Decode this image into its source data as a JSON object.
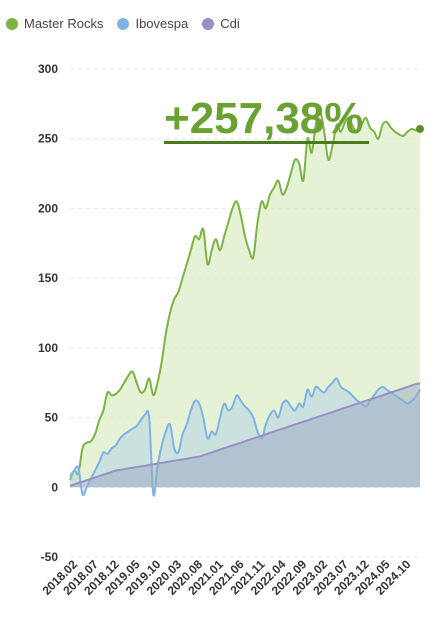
{
  "legend": [
    {
      "label": "Master Rocks",
      "color": "#7cb342"
    },
    {
      "label": "Ibovespa",
      "color": "#7fb3e6"
    },
    {
      "label": "Cdi",
      "color": "#9a8fc9"
    }
  ],
  "headline": "+257,38%",
  "chart_data": {
    "type": "area",
    "ylim": [
      -50,
      300
    ],
    "yticks": [
      "300",
      "250",
      "200",
      "150",
      "100",
      "50",
      "0",
      "-50"
    ],
    "ytick_values": [
      300,
      250,
      200,
      150,
      100,
      50,
      0,
      -50
    ],
    "xtick_labels": [
      "2018.02",
      "2018.07",
      "2018.12",
      "2019.05",
      "2019.10",
      "2020.03",
      "2020.08",
      "2021.01",
      "2021.06",
      "2021.11",
      "2022.04",
      "2022.09",
      "2023.02",
      "2023.07",
      "2023.12",
      "2024.05",
      "2024.10"
    ],
    "xtick_index": [
      0,
      5,
      10,
      15,
      20,
      25,
      30,
      35,
      40,
      45,
      50,
      55,
      60,
      65,
      70,
      75,
      80
    ],
    "n_points": 85,
    "grid": true,
    "series": [
      {
        "name": "Master Rocks",
        "color": "#7cb342",
        "values": [
          5,
          12,
          10,
          28,
          32,
          33,
          38,
          48,
          55,
          68,
          66,
          67,
          70,
          75,
          80,
          83,
          75,
          68,
          70,
          78,
          66,
          75,
          90,
          110,
          125,
          135,
          140,
          150,
          160,
          170,
          180,
          178,
          185,
          160,
          170,
          178,
          170,
          180,
          190,
          200,
          205,
          195,
          180,
          170,
          165,
          190,
          205,
          200,
          210,
          215,
          220,
          210,
          215,
          225,
          235,
          232,
          220,
          250,
          240,
          260,
          270,
          255,
          235,
          245,
          260,
          255,
          262,
          265,
          258,
          255,
          260,
          265,
          258,
          255,
          250,
          260,
          262,
          258,
          255,
          253,
          252,
          255,
          257,
          256,
          257
        ]
      },
      {
        "name": "Ibovespa",
        "color": "#7fb3e6",
        "values": [
          8,
          12,
          14,
          -5,
          0,
          6,
          12,
          18,
          25,
          24,
          28,
          30,
          35,
          38,
          40,
          42,
          44,
          48,
          52,
          50,
          -5,
          15,
          30,
          40,
          45,
          28,
          25,
          38,
          45,
          55,
          62,
          60,
          50,
          35,
          40,
          38,
          50,
          60,
          55,
          58,
          66,
          62,
          58,
          55,
          50,
          40,
          35,
          45,
          52,
          55,
          50,
          60,
          62,
          58,
          55,
          60,
          58,
          70,
          65,
          72,
          70,
          68,
          72,
          75,
          78,
          72,
          70,
          68,
          65,
          62,
          60,
          58,
          62,
          66,
          70,
          72,
          70,
          68,
          66,
          64,
          62,
          60,
          62,
          65,
          70
        ]
      },
      {
        "name": "Cdi",
        "color": "#9a8fc9",
        "values": [
          1,
          2,
          3,
          4,
          5,
          6,
          7,
          8,
          9,
          10,
          11,
          12,
          12.5,
          13,
          13.5,
          14,
          14.5,
          15,
          15.5,
          16,
          16.5,
          17,
          17.5,
          18,
          18.5,
          19,
          19.5,
          20,
          20.5,
          21,
          21.5,
          22,
          23,
          24,
          25,
          26,
          27,
          28,
          29,
          30,
          31,
          32,
          33,
          34,
          35,
          36,
          37,
          38,
          39,
          40,
          41,
          42,
          43,
          44,
          45,
          46,
          47,
          48,
          49,
          50,
          51,
          52,
          53,
          54,
          55,
          56,
          57,
          58,
          59,
          60,
          61,
          62,
          63,
          64,
          65,
          66,
          67,
          68,
          69,
          70,
          71,
          72,
          73,
          74,
          74.5
        ]
      }
    ]
  }
}
